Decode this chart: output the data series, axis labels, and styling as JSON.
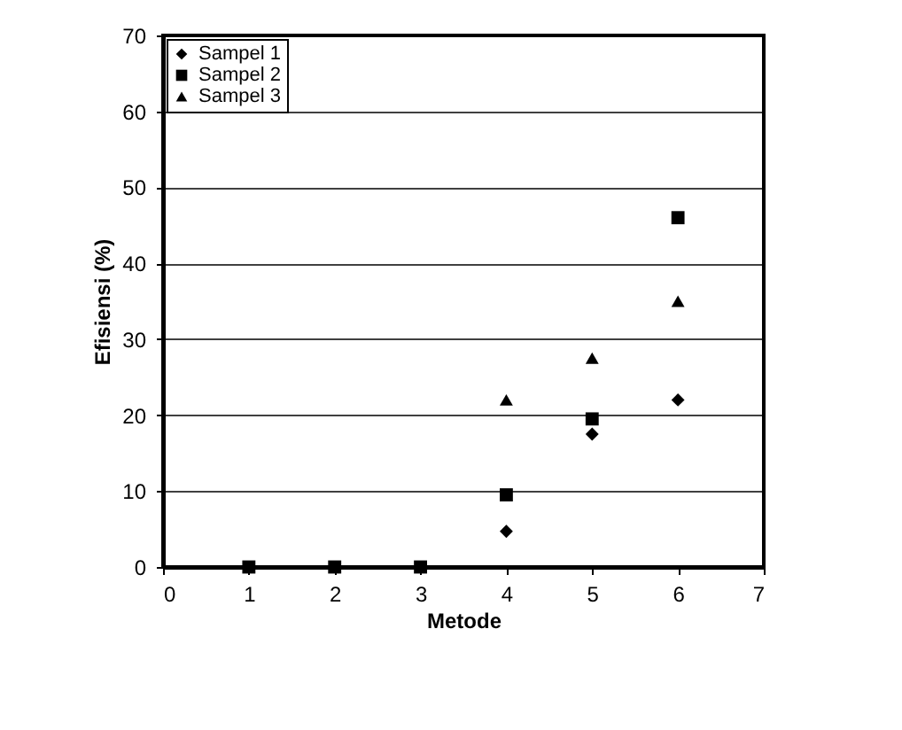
{
  "chart_data": {
    "type": "scatter",
    "xlabel": "Metode",
    "ylabel": "Efisiensi (%)",
    "x": [
      1,
      2,
      3,
      4,
      5,
      6
    ],
    "series": [
      {
        "name": "Sampel 1",
        "color": "#000000",
        "marker": "diamond",
        "values": [
          null,
          null,
          null,
          4.7,
          17.5,
          22
        ]
      },
      {
        "name": "Sampel 2",
        "color": "#000000",
        "marker": "square",
        "values": [
          0,
          0,
          0,
          9.5,
          19.5,
          46
        ]
      },
      {
        "name": "Sampel 3",
        "color": "#000000",
        "marker": "triangle",
        "values": [
          null,
          null,
          null,
          22,
          27.5,
          35
        ]
      }
    ],
    "xlim": [
      0,
      7
    ],
    "xticks": [
      0,
      1,
      2,
      3,
      4,
      5,
      6,
      7
    ],
    "ylim": [
      0,
      70
    ],
    "yticks": [
      0,
      10,
      20,
      30,
      40,
      50,
      60,
      70
    ],
    "grid": "y",
    "legend": "top left"
  }
}
